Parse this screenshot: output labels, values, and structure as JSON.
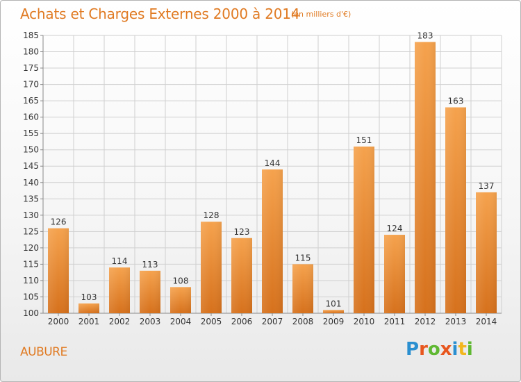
{
  "title": "Achats et Charges Externes 2000 à 2014",
  "subtitle": "(en milliers d'€)",
  "commune": "AUBURE",
  "logo": {
    "letters": [
      "P",
      "r",
      "o",
      "x",
      "i",
      "t",
      "i"
    ],
    "colors": [
      "#2a8fd0",
      "#e8561e",
      "#5fb832",
      "#e8561e",
      "#2a8fd0",
      "#f2b61d",
      "#5fb832"
    ]
  },
  "colors": {
    "accent": "#e07a22",
    "bar_top": "#f5a24d",
    "bar_bottom": "#d6711c",
    "grid": "#cfcfcf"
  },
  "chart_data": {
    "type": "bar",
    "title": "Achats et Charges Externes 2000 à 2014",
    "subtitle": "(en milliers d'€)",
    "xlabel": "",
    "ylabel": "",
    "categories": [
      "2000",
      "2001",
      "2002",
      "2003",
      "2004",
      "2005",
      "2006",
      "2007",
      "2008",
      "2009",
      "2010",
      "2011",
      "2012",
      "2013",
      "2014"
    ],
    "values": [
      126,
      103,
      114,
      113,
      108,
      128,
      123,
      144,
      115,
      101,
      151,
      124,
      183,
      163,
      137
    ],
    "ylim": [
      100,
      185
    ],
    "yticks": [
      100,
      105,
      110,
      115,
      120,
      125,
      130,
      135,
      140,
      145,
      150,
      155,
      160,
      165,
      170,
      175,
      180,
      185
    ],
    "grid": true,
    "legend": "none"
  }
}
